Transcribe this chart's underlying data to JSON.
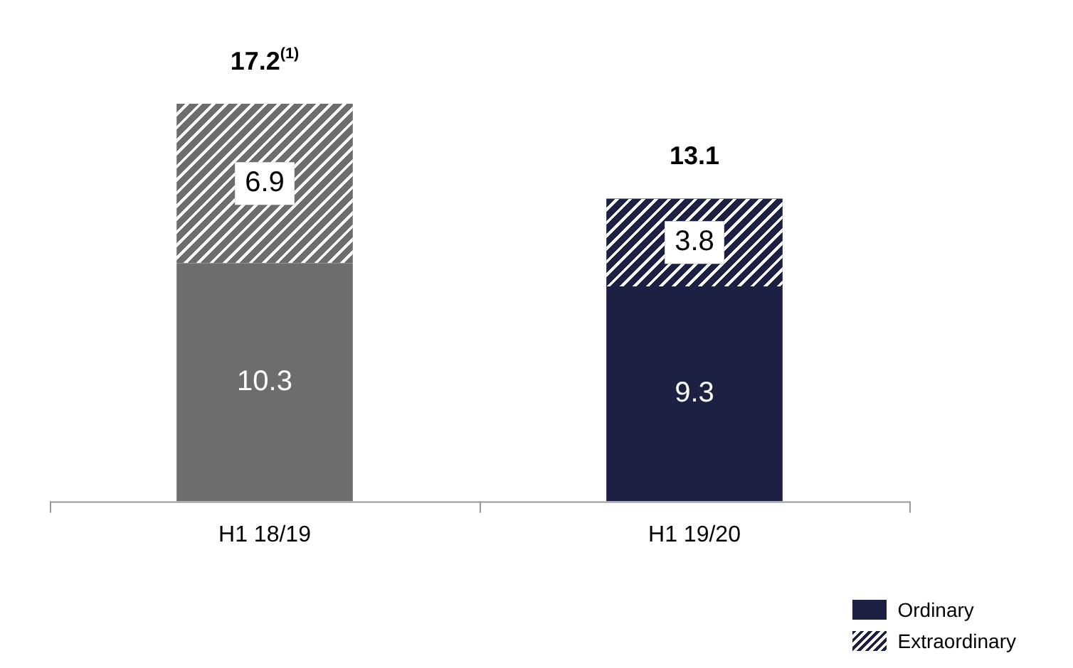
{
  "chart_data": {
    "type": "bar",
    "stacked": true,
    "categories": [
      "H1 18/19",
      "H1 19/20"
    ],
    "series": [
      {
        "name": "Ordinary",
        "colors": [
          "#6d6d6d",
          "#1c2143"
        ],
        "values": [
          10.3,
          9.3
        ]
      },
      {
        "name": "Extraordinary",
        "colors": [
          "#6d6d6d",
          "#1c2143"
        ],
        "values": [
          6.9,
          3.8
        ]
      }
    ],
    "data_labels": true,
    "totals": [
      "17.2$^{(1)}$",
      "13.1"
    ],
    "legend": "bottom right",
    "grid": false
  }
}
